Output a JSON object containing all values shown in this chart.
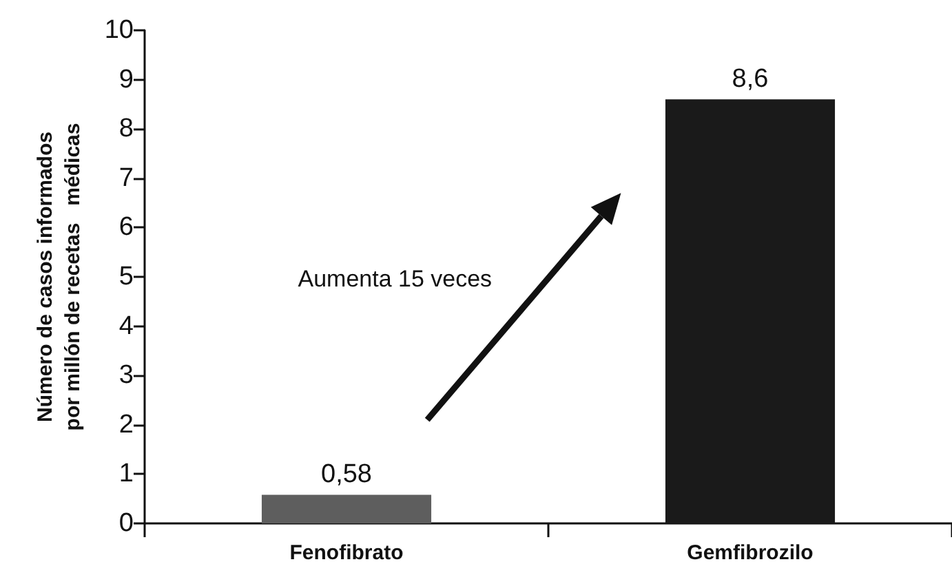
{
  "chart_data": {
    "type": "bar",
    "ylabel": "Número de casos informados\npor millón de recetas   médicas",
    "categories": [
      "Fenofibrato",
      "Gemfibrozilo"
    ],
    "values": [
      0.58,
      8.6
    ],
    "colors": [
      "#5e5e5e",
      "#1a1a1a"
    ],
    "value_labels": [
      "0,58",
      "8,6"
    ],
    "ylim": [
      0,
      10
    ],
    "yticks": [
      0,
      1,
      2,
      3,
      4,
      5,
      6,
      7,
      8,
      9,
      10
    ],
    "annotations": [
      "Aumenta 15 veces"
    ]
  }
}
